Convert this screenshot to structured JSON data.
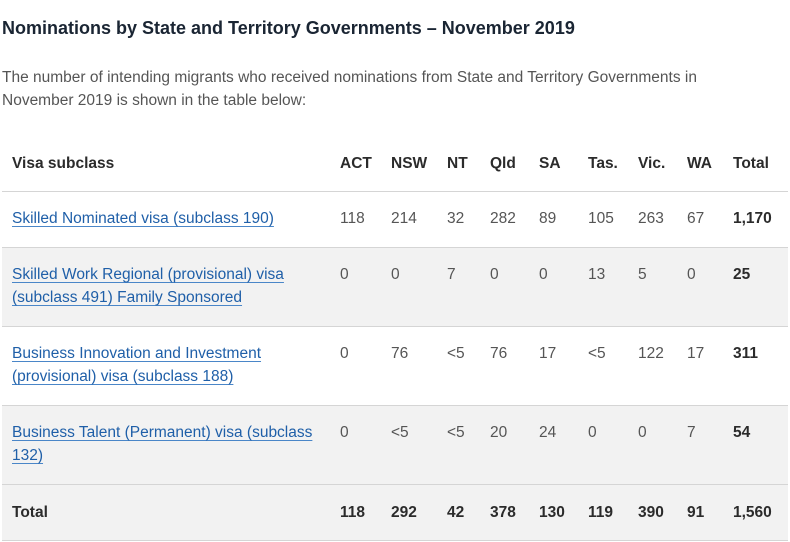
{
  "heading": "Nominations by State and Territory Governments – November 2019",
  "intro": "The number of intending migrants who received nominations from State and Territory Governments in November 2019 is shown in the table below:",
  "table": {
    "headers": [
      "Visa subclass",
      "ACT",
      "NSW",
      "NT",
      "Qld",
      "SA",
      "Tas.",
      "Vic.",
      "WA",
      "Total"
    ],
    "rows": [
      {
        "label": "Skilled Nominated visa (subclass 190)",
        "values": [
          "118",
          "214",
          "32",
          "282",
          "89",
          "105",
          "263",
          "67",
          "1,170"
        ]
      },
      {
        "label": "Skilled Work Regional (provisional) visa (subclass 491) Family Sponsored",
        "values": [
          "0",
          "0",
          "7",
          "0",
          "0",
          "13",
          "5",
          "0",
          "25"
        ]
      },
      {
        "label": "Business Innovation and Investment (provisional) visa (subclass 188)",
        "values": [
          "0",
          "76",
          "<5",
          "76",
          "17",
          "<5",
          "122",
          "17",
          "311"
        ]
      },
      {
        "label": "Business Talent (Permanent) visa (subclass 132)",
        "values": [
          "0",
          "<5",
          "<5",
          "20",
          "24",
          "0",
          "0",
          "7",
          "54"
        ]
      }
    ],
    "totals": {
      "label": "Total",
      "values": [
        "118",
        "292",
        "42",
        "378",
        "130",
        "119",
        "390",
        "91",
        "1,560"
      ]
    }
  }
}
